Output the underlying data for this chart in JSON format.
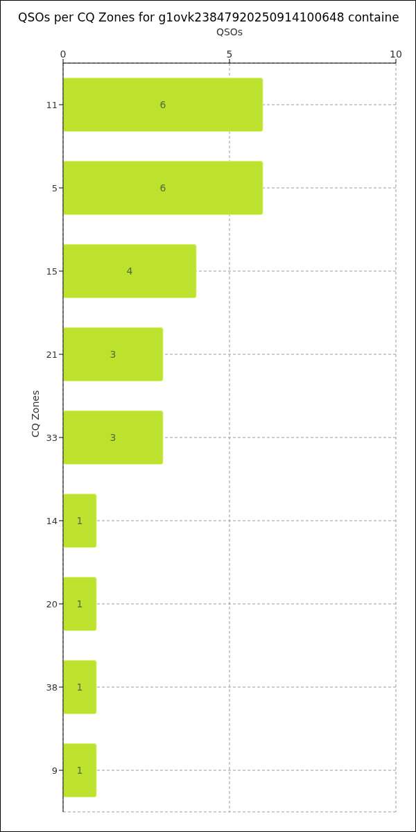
{
  "chart_data": {
    "type": "bar",
    "orientation": "horizontal",
    "title": "QSOs per CQ Zones for g1ovk23847920250914100648 containe",
    "xlabel": "QSOs",
    "ylabel": "CQ Zones",
    "categories": [
      "11",
      "5",
      "15",
      "21",
      "33",
      "14",
      "20",
      "38",
      "9"
    ],
    "values": [
      6,
      6,
      4,
      3,
      3,
      1,
      1,
      1,
      1
    ],
    "color": "#bde22e",
    "xlim": [
      0,
      10
    ],
    "xticks": [
      0,
      5,
      10
    ],
    "grid": true,
    "data_labels": true,
    "legend": false
  }
}
